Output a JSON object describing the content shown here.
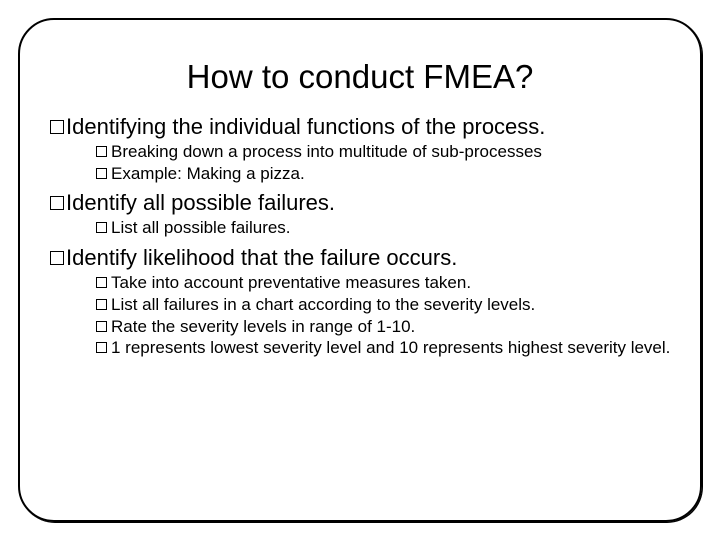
{
  "slide": {
    "title": "How to conduct FMEA?",
    "title_fontsize": 33,
    "title_color": "#000000",
    "background_color": "#ffffff",
    "frame_border_color": "#000000",
    "frame_border_radius": 36,
    "bullet_box_color": "#000000",
    "l1_fontsize": 22,
    "l2_fontsize": 17,
    "sections": [
      {
        "heading": "Identifying the individual functions of the process.",
        "items": [
          "Breaking down a process into multitude of sub-processes",
          "Example: Making a pizza."
        ]
      },
      {
        "heading": "Identify all possible failures.",
        "items": [
          "List all possible failures."
        ]
      },
      {
        "heading": "Identify likelihood that the failure occurs.",
        "items": [
          "Take into account preventative measures taken.",
          "List all failures in a chart according to the severity levels.",
          "Rate the severity levels in range of 1-10.",
          "1 represents lowest severity level and 10 represents highest severity level."
        ]
      }
    ]
  }
}
